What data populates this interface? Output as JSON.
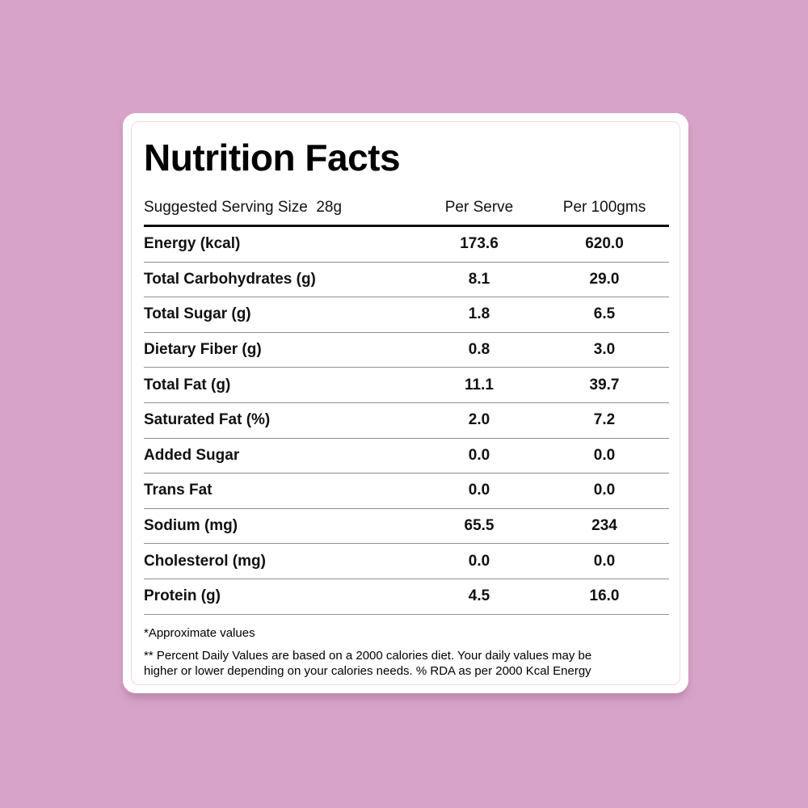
{
  "colors": {
    "background": "#d7a3c8",
    "card": "#ffffff",
    "inner_border": "#f0d8e8",
    "thick_rule": "#0d0d0d",
    "thin_rule": "#8f8f8f",
    "text": "#111111"
  },
  "card": {
    "title": "Nutrition Facts",
    "header": {
      "serving_label": "Suggested Serving Size  28g",
      "col_per_serve": "Per Serve",
      "col_per_100g": "Per 100gms"
    },
    "table": {
      "rows": [
        {
          "label": "Energy (kcal)",
          "per_serve": "173.6",
          "per_100g": "620.0"
        },
        {
          "label": "Total Carbohydrates (g)",
          "per_serve": "8.1",
          "per_100g": "29.0"
        },
        {
          "label": "Total Sugar (g)",
          "per_serve": "1.8",
          "per_100g": "6.5"
        },
        {
          "label": "Dietary Fiber (g)",
          "per_serve": "0.8",
          "per_100g": "3.0"
        },
        {
          "label": "Total Fat (g)",
          "per_serve": "11.1",
          "per_100g": "39.7"
        },
        {
          "label": "Saturated Fat (%)",
          "per_serve": "2.0",
          "per_100g": "7.2"
        },
        {
          "label": "Added Sugar",
          "per_serve": "0.0",
          "per_100g": "0.0"
        },
        {
          "label": "Trans Fat",
          "per_serve": "0.0",
          "per_100g": "0.0"
        },
        {
          "label": "Sodium (mg)",
          "per_serve": "65.5",
          "per_100g": "234"
        },
        {
          "label": "Cholesterol (mg)",
          "per_serve": "0.0",
          "per_100g": "0.0"
        },
        {
          "label": "Protein (g)",
          "per_serve": "4.5",
          "per_100g": "16.0"
        }
      ]
    },
    "footnotes": {
      "approx": "*Approximate values",
      "daily_values": "** Percent Daily Values are based on a 2000 calories diet. Your daily values may be higher or lower depending on your calories needs. % RDA as per 2000 Kcal Energy"
    }
  }
}
